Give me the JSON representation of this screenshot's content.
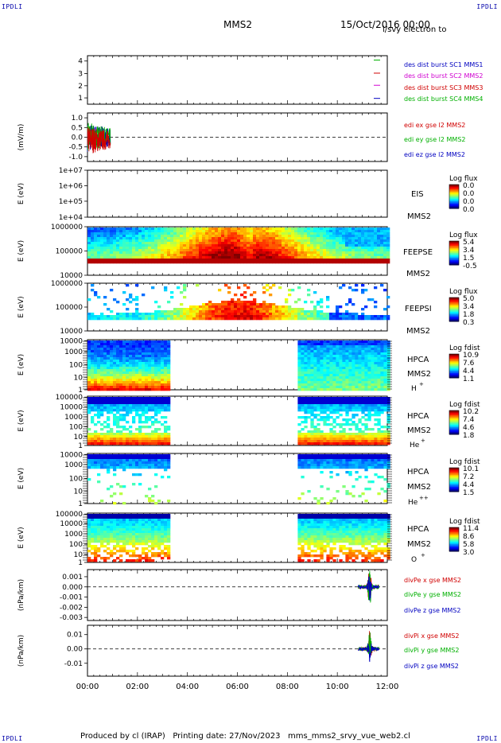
{
  "corners": [
    "IPDLI",
    "IPDLI",
    "IPDLI",
    "IPDLI"
  ],
  "header": {
    "spacecraft": "MMS2",
    "date": "15/Oct/2016 00:00"
  },
  "footer": "Produced by cl (IRAP)   Printing date: 27/Nov/2023   mms_mms2_srvy_vue_web2.cl",
  "colors": {
    "mms1": "#00b000",
    "mms2": "#d00000",
    "mms3": "#d000d0",
    "mms4": "#0000c0",
    "frame": "#000000"
  },
  "chart_data": {
    "type": "multi-panel timeseries",
    "x_axis": {
      "range": [
        "00:00",
        "12:00"
      ],
      "ticks": [
        "00:00",
        "02:00",
        "04:00",
        "06:00",
        "08:00",
        "10:00",
        "12:00"
      ]
    },
    "panels": [
      {
        "id": "burst",
        "type": "line",
        "ylabel": "",
        "ticks": [
          "4",
          "3",
          "2",
          "1"
        ],
        "legend": [
          "des dist burst SC1 MMS1",
          "des dist burst SC2 MMS2",
          "des dist burst SC3 MMS3",
          "des dist burst SC4 MMS4"
        ],
        "legend_colors": [
          "#0000c0",
          "#d000d0",
          "#d00000",
          "#00b000"
        ]
      },
      {
        "id": "edi",
        "type": "line",
        "ylabel": "(mV/m)",
        "ticks": [
          "1.0",
          "0.5",
          "0.0",
          "-0.5",
          "-1.0"
        ],
        "ylim": [
          -1.25,
          1.25
        ],
        "data_window": [
          "00:00",
          "00:55"
        ],
        "legend": [
          "edi ex gse l2 MMS2",
          "edi ey gse l2 MMS2",
          "edi ez gse l2 MMS2"
        ],
        "legend_colors": [
          "#d00000",
          "#00b000",
          "#0000c0"
        ]
      },
      {
        "id": "eis",
        "type": "heatmap",
        "ylabel": "E (eV)",
        "ticks": [
          "1e+07",
          "1e+06",
          "1e+05",
          "1e+04"
        ],
        "labels": [
          "EIS",
          "MMS2"
        ],
        "overlay": "l/svy electron to",
        "cbar_title": "Log flux",
        "cbar_ticks": [
          "0.0",
          "0.0",
          "0.0",
          "0.0"
        ]
      },
      {
        "id": "feepse",
        "type": "heatmap",
        "ylabel": "E (eV)",
        "ticks": [
          "1000000",
          "100000",
          "10000"
        ],
        "labels": [
          "FEEPSE",
          "MMS2"
        ],
        "cbar_title": "Log flux",
        "cbar_ticks": [
          "5.4",
          "3.4",
          "1.5",
          "-0.5"
        ],
        "data_window": [
          "00:00",
          "12:00"
        ]
      },
      {
        "id": "feepsi",
        "type": "heatmap",
        "ylabel": "E (eV)",
        "ticks": [
          "1000000",
          "100000",
          "10000"
        ],
        "labels": [
          "FEEPSI",
          "MMS2"
        ],
        "cbar_title": "Log flux",
        "cbar_ticks": [
          "5.0",
          "3.4",
          "1.8",
          "0.3"
        ],
        "data_window": [
          "00:00",
          "12:00"
        ]
      },
      {
        "id": "hpca_h",
        "type": "heatmap",
        "ylabel": "E (eV)",
        "ticks": [
          "10000",
          "1000",
          "100",
          "10",
          "1"
        ],
        "labels": [
          "HPCA",
          "MMS2",
          "H",
          "+"
        ],
        "cbar_title": "Log fdist",
        "cbar_ticks": [
          "10.9",
          "7.6",
          "4.4",
          "1.1"
        ],
        "data_windows": [
          [
            "00:00",
            "03:15"
          ],
          [
            "08:25",
            "12:00"
          ]
        ]
      },
      {
        "id": "hpca_he",
        "type": "heatmap",
        "ylabel": "E (eV)",
        "ticks": [
          "100000",
          "10000",
          "1000",
          "100",
          "10",
          "1"
        ],
        "labels": [
          "HPCA",
          "MMS2",
          "He",
          "+"
        ],
        "cbar_title": "Log fdist",
        "cbar_ticks": [
          "10.2",
          "7.4",
          "4.6",
          "1.8"
        ],
        "data_windows": [
          [
            "00:00",
            "03:15"
          ],
          [
            "08:25",
            "12:00"
          ]
        ]
      },
      {
        "id": "hpca_hepp",
        "type": "heatmap",
        "ylabel": "E (eV)",
        "ticks": [
          "10000",
          "1000",
          "100",
          "10",
          "1"
        ],
        "labels": [
          "HPCA",
          "MMS2",
          "He",
          "++"
        ],
        "cbar_title": "Log fdist",
        "cbar_ticks": [
          "10.1",
          "7.2",
          "4.4",
          "1.5"
        ],
        "data_windows": [
          [
            "00:00",
            "03:15"
          ],
          [
            "08:25",
            "12:00"
          ]
        ]
      },
      {
        "id": "hpca_o",
        "type": "heatmap",
        "ylabel": "E (eV)",
        "ticks": [
          "100000",
          "10000",
          "1000",
          "100",
          "10",
          "1"
        ],
        "labels": [
          "HPCA",
          "MMS2",
          "O",
          "+"
        ],
        "cbar_title": "Log fdist",
        "cbar_ticks": [
          "11.4",
          "8.6",
          "5.8",
          "3.0"
        ],
        "data_windows": [
          [
            "00:00",
            "03:15"
          ],
          [
            "08:25",
            "12:00"
          ]
        ]
      },
      {
        "id": "divpe",
        "type": "line",
        "ylabel": "(nPa/km)",
        "ticks": [
          "0.001",
          "0.000",
          "-0.001",
          "-0.002",
          "-0.003"
        ],
        "ylim": [
          -0.0033,
          0.0017
        ],
        "data_window": [
          "10:50",
          "11:40"
        ],
        "legend": [
          "divPe x gse MMS2",
          "divPe y gse MMS2",
          "divPe z gse MMS2"
        ],
        "legend_colors": [
          "#d00000",
          "#00b000",
          "#0000c0"
        ]
      },
      {
        "id": "divpi",
        "type": "line",
        "ylabel": "(nPa/km)",
        "ticks": [
          "0.01",
          "0.00",
          "-0.01"
        ],
        "ylim": [
          -0.019,
          0.0165
        ],
        "data_window": [
          "10:50",
          "11:40"
        ],
        "legend": [
          "divPi x gse MMS2",
          "divPi y gse MMS2",
          "divPi z gse MMS2"
        ],
        "legend_colors": [
          "#d00000",
          "#00b000",
          "#0000c0"
        ]
      }
    ]
  }
}
